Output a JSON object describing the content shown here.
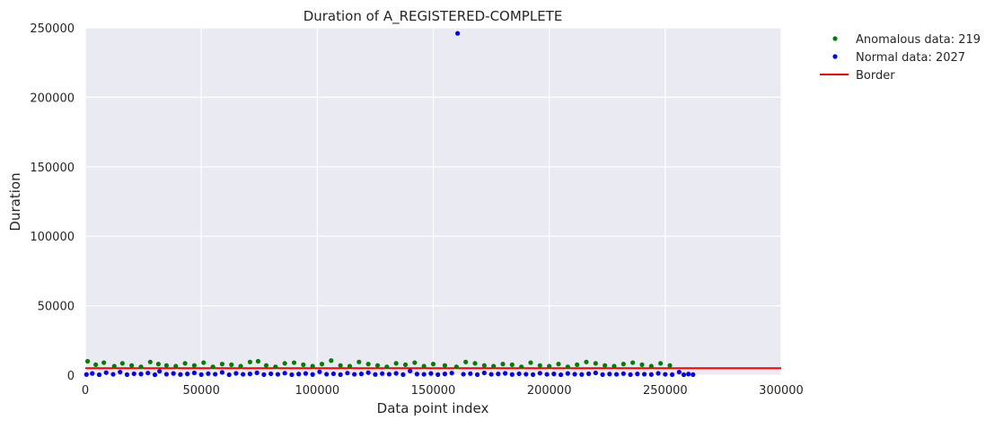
{
  "chart_data": {
    "type": "scatter",
    "title": "Duration of A_REGISTERED-COMPLETE",
    "xlabel": "Data point index",
    "ylabel": "Duration",
    "xlim": [
      0,
      300000
    ],
    "ylim": [
      0,
      250000
    ],
    "xticks": [
      0,
      50000,
      100000,
      150000,
      200000,
      250000,
      300000
    ],
    "yticks": [
      0,
      50000,
      100000,
      150000,
      200000,
      250000
    ],
    "grid": true,
    "legend_position": "outside-top-right",
    "series": [
      {
        "name": "Anomalous data: 219",
        "kind": "scatter",
        "color": "#008000",
        "x": [
          1000,
          4500,
          8000,
          12500,
          16000,
          20000,
          24000,
          28000,
          31500,
          35000,
          39000,
          43000,
          47000,
          51000,
          55000,
          59000,
          63000,
          67000,
          71000,
          74500,
          78000,
          82000,
          86000,
          90000,
          94000,
          98000,
          102000,
          106000,
          110000,
          114000,
          118000,
          122000,
          126000,
          130000,
          134000,
          138000,
          142000,
          146000,
          150000,
          155000,
          160000,
          164000,
          168000,
          172000,
          176000,
          180000,
          184000,
          188000,
          192000,
          196000,
          200000,
          204000,
          208000,
          212000,
          216000,
          220000,
          224000,
          228000,
          232000,
          236000,
          240000,
          244000,
          248000,
          252000
        ],
        "y": [
          10000,
          7500,
          9000,
          6500,
          8500,
          7000,
          6000,
          9500,
          8000,
          7000,
          6500,
          8500,
          7000,
          9000,
          6000,
          8000,
          7500,
          6500,
          9500,
          10000,
          7000,
          6000,
          8500,
          9000,
          7500,
          6500,
          8000,
          10500,
          7000,
          6500,
          9500,
          8000,
          7000,
          6000,
          8500,
          7500,
          9000,
          6500,
          8000,
          7000,
          6000,
          9500,
          8500,
          7000,
          6500,
          8000,
          7500,
          6000,
          9000,
          7000,
          6500,
          8000,
          6000,
          7500,
          9500,
          8500,
          7000,
          6500,
          8000,
          9000,
          7500,
          6500,
          8500,
          7000
        ]
      },
      {
        "name": "Normal data: 2027",
        "kind": "scatter",
        "color": "#0000ff",
        "x": [
          500,
          3000,
          6000,
          9000,
          12000,
          15000,
          18000,
          21000,
          24000,
          27000,
          30000,
          32000,
          35000,
          38000,
          41000,
          44000,
          47000,
          50000,
          53000,
          56000,
          59000,
          62000,
          65000,
          68000,
          71000,
          74000,
          77000,
          80000,
          83000,
          86000,
          89000,
          92000,
          95000,
          98000,
          101000,
          104000,
          107000,
          110000,
          113000,
          116000,
          119000,
          122000,
          125000,
          128000,
          131000,
          134000,
          137000,
          140000,
          143000,
          146000,
          149000,
          152000,
          155000,
          158000,
          160500,
          163000,
          166000,
          169000,
          172000,
          175000,
          178000,
          181000,
          184000,
          187000,
          190000,
          193000,
          196000,
          199000,
          202000,
          205000,
          208000,
          211000,
          214000,
          217000,
          220000,
          223000,
          226000,
          229000,
          232000,
          235000,
          238000,
          241000,
          244000,
          247000,
          250000,
          253000,
          256000,
          258000,
          260000,
          262000
        ],
        "y": [
          500,
          1200,
          300,
          1800,
          600,
          2200,
          400,
          1000,
          800,
          1500,
          300,
          2800,
          700,
          1200,
          500,
          900,
          1600,
          400,
          1100,
          700,
          2000,
          300,
          1300,
          600,
          900,
          1700,
          400,
          1000,
          600,
          1400,
          300,
          800,
          1200,
          500,
          2400,
          700,
          1000,
          400,
          1500,
          600,
          900,
          1800,
          500,
          1100,
          700,
          1300,
          400,
          3000,
          800,
          600,
          1200,
          400,
          900,
          1500,
          246000,
          700,
          1100,
          400,
          1600,
          600,
          900,
          1300,
          500,
          1000,
          700,
          400,
          1400,
          600,
          900,
          300,
          1200,
          700,
          500,
          1000,
          1600,
          400,
          800,
          600,
          1100,
          400,
          900,
          700,
          500,
          1300,
          600,
          400,
          2200,
          300,
          800,
          400
        ]
      },
      {
        "name": "Border",
        "kind": "line",
        "color": "#ff0000",
        "x": [
          0,
          300000
        ],
        "y": [
          5000,
          5000
        ]
      }
    ]
  }
}
